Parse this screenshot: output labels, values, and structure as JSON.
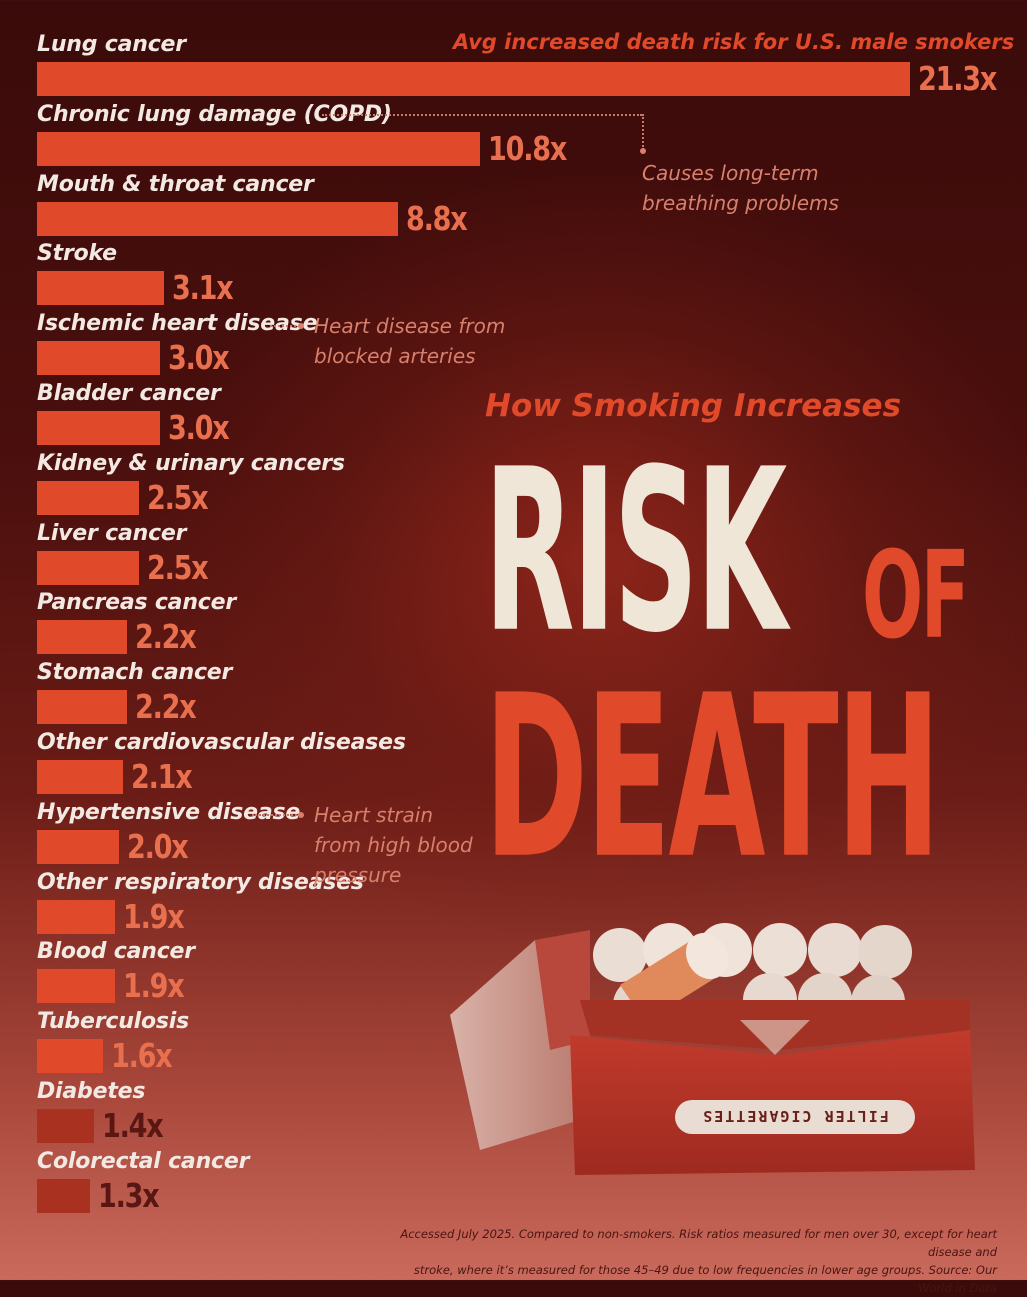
{
  "title_small": "How Smoking Increases",
  "title_big_1": "RISK",
  "title_big_2": "OF",
  "title_big_3": "DEATH",
  "legend_note": "Avg increased death risk for U.S. male smokers",
  "annotations": {
    "copd": "Causes long-term breathing problems",
    "copd_lines": [
      "Causes long-term",
      "breathing problems"
    ],
    "ischemic_lines": [
      "Heart disease from",
      "blocked arteries"
    ],
    "hypertensive_lines": [
      "Heart strain",
      "from high blood",
      "pressure"
    ]
  },
  "footer_lines": [
    "Accessed July 2025. Compared to non-smokers. Risk ratios measured for men over 30, except for heart disease and",
    "stroke, where it’s measured for those 45–49 due to low frequencies in lower age groups. Source: Our World in Data"
  ],
  "pack_label": "FILTER CIGARETTES",
  "colors": {
    "bar": "#e04a2a",
    "value": "#e8704e",
    "label": "#f3e9e3",
    "cream": "#efe6d7",
    "background": "#4a0f0d"
  },
  "chart_data": {
    "type": "bar",
    "orientation": "horizontal",
    "title": "How Smoking Increases RISK OF DEATH",
    "categories": [
      "Lung cancer",
      "Chronic lung damage (COPD)",
      "Mouth & throat cancer",
      "Stroke",
      "Ischemic heart disease",
      "Bladder cancer",
      "Kidney & urinary cancers",
      "Liver cancer",
      "Pancreas cancer",
      "Stomach cancer",
      "Other cardiovascular diseases",
      "Hypertensive disease",
      "Other respiratory diseases",
      "Blood cancer",
      "Tuberculosis",
      "Diabetes",
      "Colorectal cancer"
    ],
    "values": [
      21.3,
      10.8,
      8.8,
      3.1,
      3.0,
      3.0,
      2.5,
      2.5,
      2.2,
      2.2,
      2.1,
      2.0,
      1.9,
      1.9,
      1.6,
      1.4,
      1.3
    ],
    "value_labels": [
      "21.3x",
      "10.8x",
      "8.8x",
      "3.1x",
      "3.0x",
      "3.0x",
      "2.5x",
      "2.5x",
      "2.2x",
      "2.2x",
      "2.1x",
      "2.0x",
      "1.9x",
      "1.9x",
      "1.6x",
      "1.4x",
      "1.3x"
    ],
    "xlim": [
      0,
      21.3
    ]
  }
}
